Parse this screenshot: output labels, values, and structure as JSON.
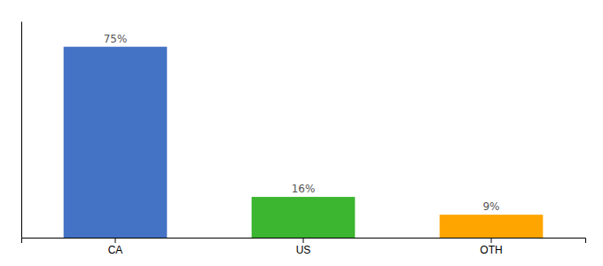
{
  "chart_data": {
    "type": "bar",
    "categories": [
      "CA",
      "US",
      "OTH"
    ],
    "values": [
      75,
      16,
      9
    ],
    "value_labels": [
      "75%",
      "16%",
      "9%"
    ],
    "colors": [
      "#4472C4",
      "#3CB530",
      "#FFA500"
    ],
    "data_labels": true,
    "ylim": [
      0,
      85
    ],
    "yticks": [],
    "tick_labels": "x",
    "grid": false
  }
}
